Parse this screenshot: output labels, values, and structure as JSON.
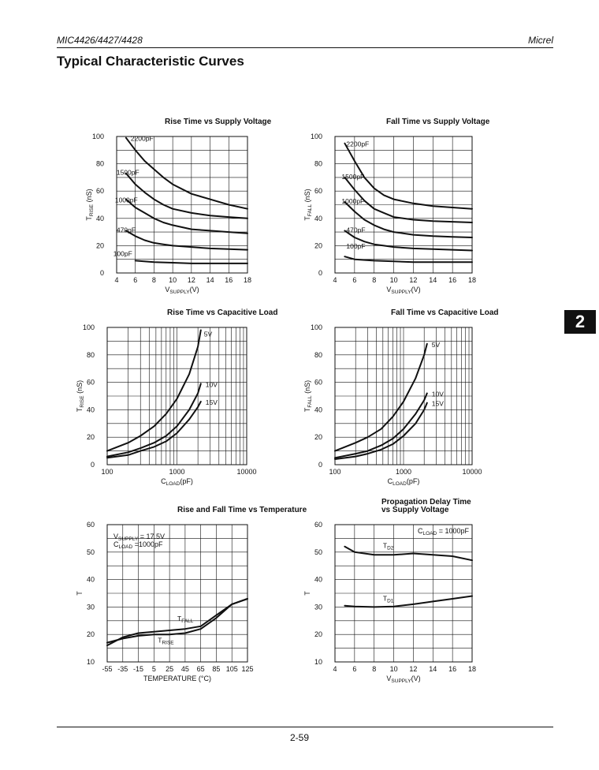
{
  "header": {
    "left": "MIC4426/4427/4428",
    "right": "Micrel"
  },
  "section_title": "Typical Characteristic Curves",
  "tab_label": "2",
  "footer": {
    "page_number": "2-59"
  },
  "chart_data": [
    {
      "type": "line",
      "title": "Rise Time vs Supply Voltage",
      "title_lines": [
        "Rise Time vs Supply Voltage"
      ],
      "xlabel": "VSUPPLY(V)",
      "ylabel": "TRISE (nS)",
      "xlim": [
        4,
        18
      ],
      "ylim": [
        0,
        100
      ],
      "xscale": "linear",
      "xticks": [
        4,
        6,
        8,
        10,
        12,
        14,
        16,
        18
      ],
      "yticks": [
        0,
        20,
        40,
        60,
        80,
        100
      ],
      "grid": true,
      "series": [
        {
          "name": "2200pF",
          "x": [
            5,
            6,
            7,
            8,
            9,
            10,
            12,
            14,
            16,
            18
          ],
          "y": [
            99,
            90,
            82,
            76,
            70,
            65,
            58,
            54,
            50,
            47
          ]
        },
        {
          "name": "1500pF",
          "x": [
            5,
            6,
            7,
            8,
            9,
            10,
            12,
            14,
            16,
            18
          ],
          "y": [
            73,
            65,
            59,
            54,
            50,
            47,
            44,
            42,
            41,
            40
          ]
        },
        {
          "name": "1000pF",
          "x": [
            5,
            6,
            7,
            8,
            9,
            10,
            12,
            14,
            16,
            18
          ],
          "y": [
            54,
            48,
            44,
            40,
            37,
            35,
            32,
            31,
            30,
            29
          ]
        },
        {
          "name": "470pF",
          "x": [
            5,
            6,
            7,
            8,
            9,
            10,
            12,
            14,
            16,
            18
          ],
          "y": [
            31,
            27,
            24,
            22,
            21,
            20,
            19,
            18,
            17.5,
            17
          ]
        },
        {
          "name": "100pF",
          "x": [
            6,
            8,
            10,
            12,
            14,
            16,
            18
          ],
          "y": [
            9,
            8,
            7.5,
            7,
            7,
            7,
            7
          ]
        }
      ]
    },
    {
      "type": "line",
      "title": "Fall Time vs Supply Voltage",
      "title_lines": [
        "Fall Time vs Supply Voltage"
      ],
      "xlabel": "VSUPPLY(V)",
      "ylabel": "TFALL (nS)",
      "xlim": [
        4,
        18
      ],
      "ylim": [
        0,
        100
      ],
      "xscale": "linear",
      "xticks": [
        4,
        6,
        8,
        10,
        12,
        14,
        16,
        18
      ],
      "yticks": [
        0,
        20,
        40,
        60,
        80,
        100
      ],
      "grid": true,
      "series": [
        {
          "name": "2200pF",
          "x": [
            5,
            6,
            7,
            8,
            9,
            10,
            12,
            14,
            16,
            18
          ],
          "y": [
            95,
            82,
            70,
            62,
            57,
            54,
            51,
            49,
            48,
            47
          ]
        },
        {
          "name": "1500pF",
          "x": [
            5,
            6,
            7,
            8,
            9,
            10,
            12,
            14,
            16,
            18
          ],
          "y": [
            70,
            61,
            53,
            47,
            44,
            41,
            39,
            38,
            37.5,
            37
          ]
        },
        {
          "name": "1000pF",
          "x": [
            5,
            6,
            7,
            8,
            9,
            10,
            12,
            14,
            16,
            18
          ],
          "y": [
            52,
            45,
            39,
            35,
            32,
            30,
            28,
            27,
            26.5,
            26
          ]
        },
        {
          "name": "470pF",
          "x": [
            5,
            6,
            7,
            8,
            9,
            10,
            12,
            14,
            16,
            18
          ],
          "y": [
            31,
            26,
            23,
            21,
            20,
            19,
            18,
            17.5,
            17,
            16.5
          ]
        },
        {
          "name": "100pF",
          "x": [
            5,
            6,
            8,
            10,
            12,
            14,
            16,
            18
          ],
          "y": [
            12,
            10,
            9,
            8.5,
            8,
            8,
            8,
            8
          ]
        }
      ]
    },
    {
      "type": "line",
      "title": "Rise Time vs Capacitive Load",
      "title_lines": [
        "Rise Time vs Capacitive Load"
      ],
      "xlabel": "CLOAD(pF)",
      "ylabel": "TRISE (nS)",
      "xlim": [
        100,
        10000
      ],
      "ylim": [
        0,
        100
      ],
      "xscale": "log",
      "xticks": [
        100,
        1000,
        10000
      ],
      "yticks": [
        0,
        20,
        40,
        60,
        80,
        100
      ],
      "grid": true,
      "series": [
        {
          "name": "5V",
          "x": [
            100,
            200,
            300,
            470,
            700,
            1000,
            1500,
            2000,
            2200
          ],
          "y": [
            10,
            16,
            21,
            28,
            37,
            48,
            66,
            86,
            98
          ]
        },
        {
          "name": "10V",
          "x": [
            100,
            200,
            300,
            470,
            700,
            1000,
            1500,
            2000,
            2200
          ],
          "y": [
            6,
            9,
            12,
            16,
            21,
            28,
            40,
            52,
            59
          ]
        },
        {
          "name": "15V",
          "x": [
            100,
            200,
            300,
            470,
            700,
            1000,
            1500,
            2000,
            2200
          ],
          "y": [
            5,
            7,
            10,
            13,
            17,
            23,
            33,
            42,
            46
          ]
        }
      ]
    },
    {
      "type": "line",
      "title": "Fall Time vs Capacitive Load",
      "title_lines": [
        "Fall Time vs Capacitive Load"
      ],
      "xlabel": "CLOAD(pF)",
      "ylabel": "TFALL (nS)",
      "xlim": [
        100,
        10000
      ],
      "ylim": [
        0,
        100
      ],
      "xscale": "log",
      "xticks": [
        100,
        1000,
        10000
      ],
      "yticks": [
        0,
        20,
        40,
        60,
        80,
        100
      ],
      "grid": true,
      "series": [
        {
          "name": "5V",
          "x": [
            100,
            200,
            300,
            470,
            700,
            1000,
            1500,
            2000,
            2200
          ],
          "y": [
            10,
            16,
            20,
            26,
            35,
            46,
            63,
            80,
            88
          ]
        },
        {
          "name": "10V",
          "x": [
            100,
            200,
            300,
            470,
            700,
            1000,
            1500,
            2000,
            2200
          ],
          "y": [
            5,
            8,
            10,
            14,
            19,
            26,
            37,
            47,
            52
          ]
        },
        {
          "name": "15V",
          "x": [
            100,
            200,
            300,
            470,
            700,
            1000,
            1500,
            2000,
            2200
          ],
          "y": [
            4,
            6,
            8,
            11,
            15,
            21,
            30,
            40,
            45
          ]
        }
      ]
    },
    {
      "type": "line",
      "title": "Rise and Fall Time vs Temperature",
      "title_lines": [
        "Rise and Fall Time vs Temperature"
      ],
      "xlabel": "TEMPERATURE (°C)",
      "ylabel": "T (nS)",
      "xlim": [
        -55,
        125
      ],
      "ylim": [
        10,
        60
      ],
      "xscale": "linear",
      "xticks": [
        -55,
        -35,
        -15,
        5,
        25,
        45,
        65,
        85,
        105,
        125
      ],
      "yticks": [
        10,
        20,
        30,
        40,
        50,
        60
      ],
      "grid": true,
      "annotation": [
        "VSUPPLY = 17.5V",
        "CLOAD =1000pF"
      ],
      "series": [
        {
          "name": "TFALL",
          "x": [
            -55,
            -35,
            -15,
            5,
            25,
            45,
            65,
            85,
            105,
            125
          ],
          "y": [
            16,
            19,
            20.5,
            21,
            21.5,
            22,
            23,
            27,
            31,
            33
          ]
        },
        {
          "name": "TRISE",
          "x": [
            -55,
            -35,
            -15,
            5,
            25,
            45,
            65,
            85,
            105,
            125
          ],
          "y": [
            17,
            18.5,
            19.5,
            20,
            20,
            20.5,
            22,
            26,
            31,
            33
          ]
        }
      ]
    },
    {
      "type": "line",
      "title": "Propagation Delay Time vs Supply Voltage",
      "title_lines": [
        "Propagation Delay Time",
        "vs Supply Voltage"
      ],
      "xlabel": "VSUPPLY(V)",
      "ylabel": "T (nS)",
      "xlim": [
        4,
        18
      ],
      "ylim": [
        10,
        60
      ],
      "xscale": "linear",
      "xticks": [
        4,
        6,
        8,
        10,
        12,
        14,
        16,
        18
      ],
      "yticks": [
        10,
        20,
        30,
        40,
        50,
        60
      ],
      "grid": true,
      "annotation": [
        "CLOAD = 1000pF"
      ],
      "series": [
        {
          "name": "TD2",
          "x": [
            5,
            6,
            7,
            8,
            10,
            12,
            14,
            16,
            18
          ],
          "y": [
            52,
            50,
            49.5,
            49,
            49,
            49.5,
            49,
            48.5,
            47
          ]
        },
        {
          "name": "TD1",
          "x": [
            5,
            6,
            8,
            10,
            12,
            14,
            16,
            18
          ],
          "y": [
            30.5,
            30.2,
            30,
            30.2,
            31,
            32,
            33,
            34
          ]
        }
      ]
    }
  ]
}
